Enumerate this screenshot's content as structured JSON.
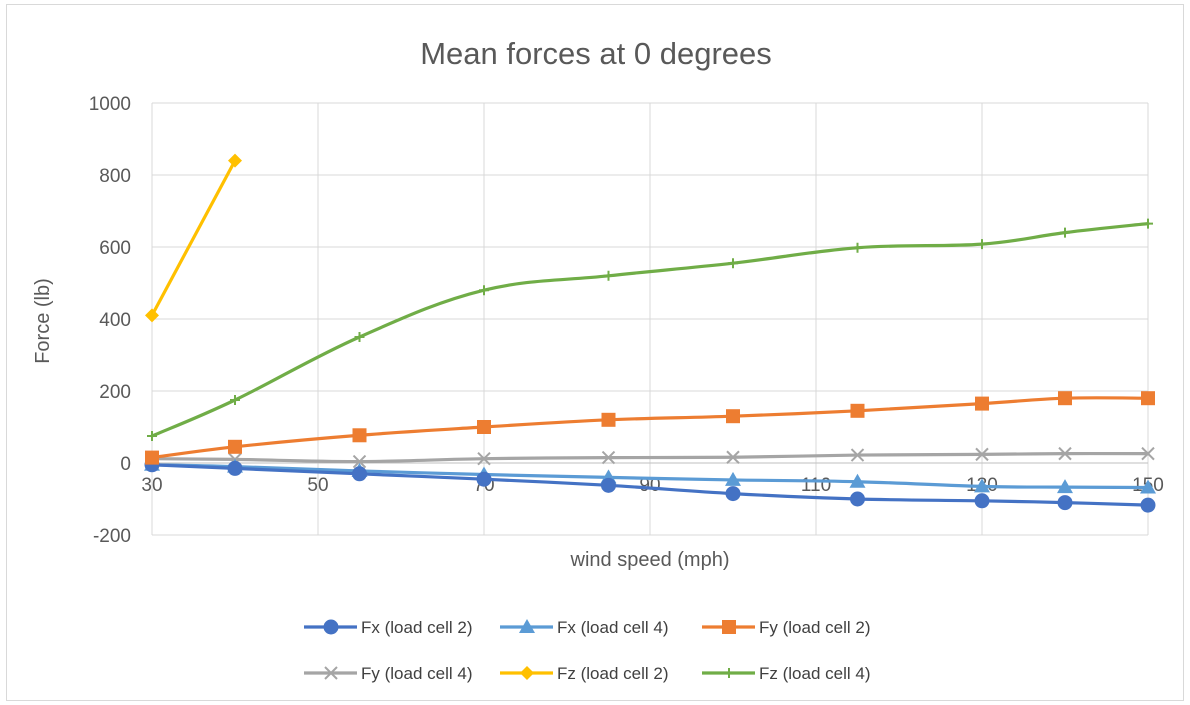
{
  "chart_data": {
    "type": "line",
    "title": "Mean forces at 0 degrees",
    "xlabel": "wind speed (mph)",
    "ylabel": "Force (lb)",
    "xlim": [
      30,
      150
    ],
    "ylim": [
      -200,
      1000
    ],
    "xticks": [
      "30",
      "50",
      "70",
      "90",
      "110",
      "130",
      "150"
    ],
    "yticks": [
      "-200",
      "0",
      "200",
      "400",
      "600",
      "800",
      "1000"
    ],
    "grid": true,
    "legend_position": "bottom",
    "series": [
      {
        "name": "Fx (load cell 2)",
        "color": "#4472C4",
        "marker": "circle",
        "x": [
          30,
          40,
          55,
          70,
          85,
          100,
          115,
          130,
          140,
          150
        ],
        "y": [
          -5,
          -15,
          -30,
          -45,
          -62,
          -85,
          -100,
          -105,
          -110,
          -117
        ]
      },
      {
        "name": "Fx (load cell 4)",
        "color": "#5B9BD5",
        "marker": "triangle",
        "x": [
          30,
          40,
          55,
          70,
          85,
          100,
          115,
          130,
          140,
          150
        ],
        "y": [
          -5,
          -10,
          -22,
          -32,
          -40,
          -47,
          -52,
          -65,
          -67,
          -68
        ]
      },
      {
        "name": "Fy (load cell 2)",
        "color": "#ED7D31",
        "marker": "square",
        "x": [
          30,
          40,
          55,
          70,
          85,
          100,
          115,
          130,
          140,
          150
        ],
        "y": [
          15,
          45,
          77,
          100,
          120,
          130,
          145,
          165,
          180,
          180
        ]
      },
      {
        "name": "Fy (load cell 4)",
        "color": "#A5A5A5",
        "marker": "x",
        "x": [
          30,
          40,
          55,
          70,
          85,
          100,
          115,
          130,
          140,
          150
        ],
        "y": [
          12,
          10,
          4,
          12,
          15,
          16,
          22,
          24,
          26,
          26
        ]
      },
      {
        "name": "Fz (load cell 2)",
        "color": "#FFC000",
        "marker": "diamond",
        "x": [
          30,
          40
        ],
        "y": [
          410,
          840
        ]
      },
      {
        "name": "Fz (load cell 4)",
        "color": "#70AD47",
        "marker": "plus",
        "x": [
          30,
          40,
          55,
          70,
          85,
          100,
          115,
          130,
          140,
          150
        ],
        "y": [
          75,
          175,
          350,
          480,
          520,
          555,
          598,
          608,
          640,
          665
        ]
      }
    ]
  }
}
